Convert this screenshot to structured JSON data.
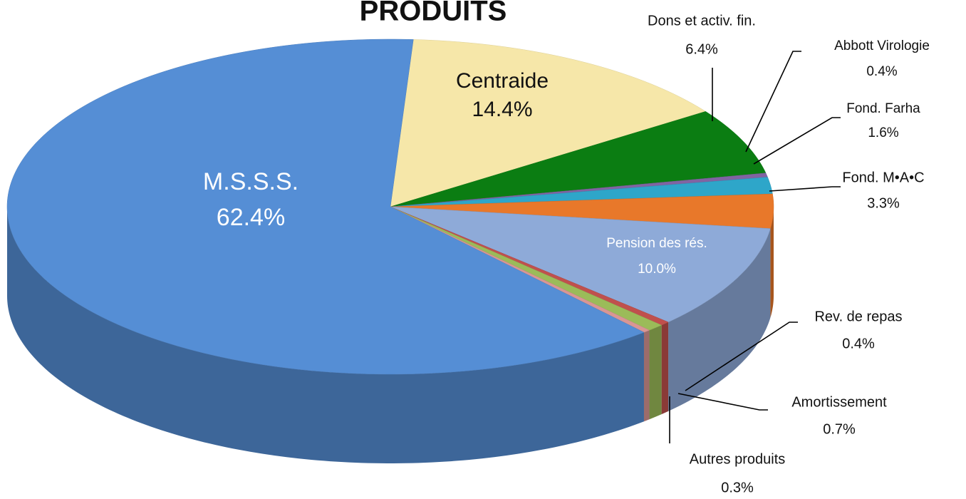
{
  "chart_data": {
    "type": "pie",
    "title": "PRODUITS",
    "categories": [
      "Centraide",
      "Dons et activ. fin.",
      "Abbott Virologie",
      "Fond. Farha",
      "Fond. M•A•C",
      "Pension des rés.",
      "Rev. de repas",
      "Amortissement",
      "Autres produits",
      "M.S.S.S."
    ],
    "values": [
      14.4,
      6.4,
      0.4,
      1.6,
      3.3,
      10.0,
      0.4,
      0.7,
      0.3,
      62.4
    ],
    "value_labels": [
      "14.4%",
      "6.4%",
      "0.4%",
      "1.6%",
      "3.3%",
      "10.0%",
      "0.4%",
      "0.7%",
      "0.3%",
      "62.4%"
    ],
    "colors": [
      "#f6e7a9",
      "#0b7d12",
      "#8064a2",
      "#2ea6c9",
      "#e8782a",
      "#8eaad8",
      "#c0504d",
      "#9bbb59",
      "#d99694",
      "#558ed5"
    ]
  }
}
